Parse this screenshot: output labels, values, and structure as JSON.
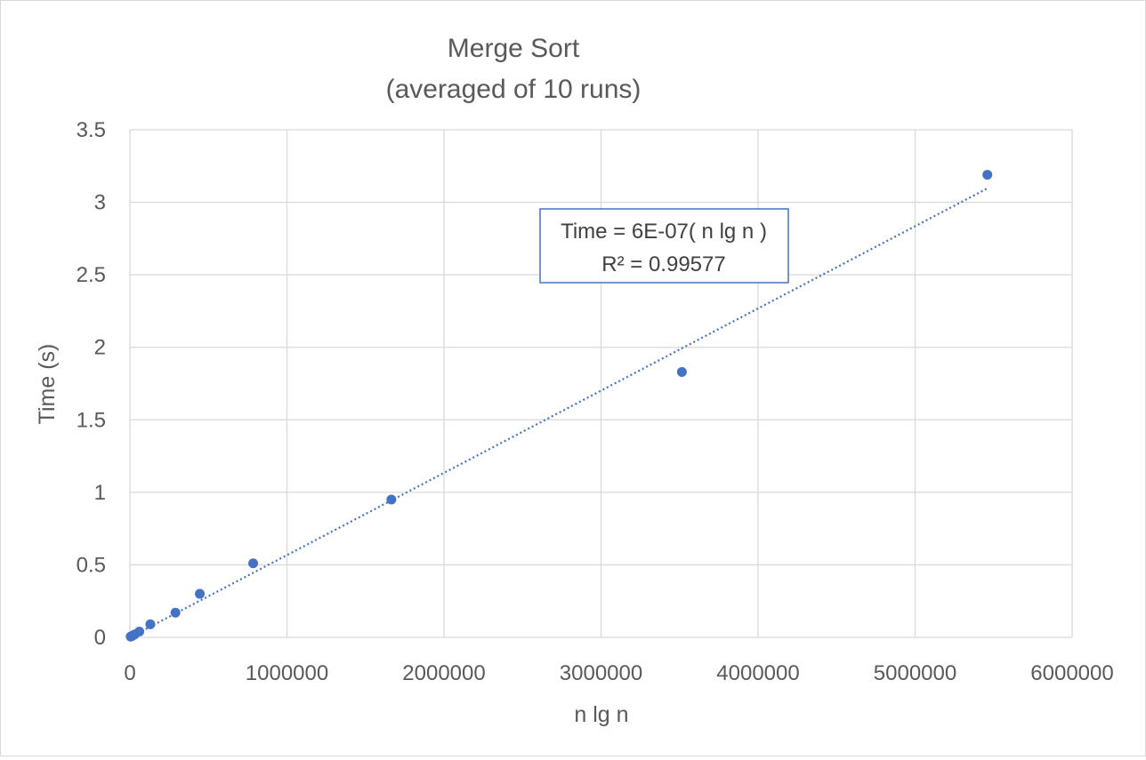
{
  "chart_data": {
    "type": "scatter",
    "title": "Merge Sort",
    "subtitle": "(averaged of 10 runs)",
    "xlabel": "n lg n",
    "ylabel": "Time (s)",
    "xlim": [
      0,
      6000000
    ],
    "ylim": [
      0,
      3.5
    ],
    "xticks": [
      0,
      1000000,
      2000000,
      3000000,
      4000000,
      5000000,
      6000000
    ],
    "yticks": [
      0,
      0.5,
      1,
      1.5,
      2,
      2.5,
      3,
      3.5
    ],
    "xtick_labels": [
      "0",
      "1000000",
      "2000000",
      "3000000",
      "4000000",
      "5000000",
      "6000000"
    ],
    "ytick_labels": [
      "0",
      "0.5",
      "1",
      "1.5",
      "2",
      "2.5",
      "3",
      "3.5"
    ],
    "grid": true,
    "series": [
      {
        "color": "#4472c4",
        "points": [
          {
            "x": 5000,
            "y": 0.005
          },
          {
            "x": 15000,
            "y": 0.01
          },
          {
            "x": 30000,
            "y": 0.02
          },
          {
            "x": 60000,
            "y": 0.04
          },
          {
            "x": 130000,
            "y": 0.09
          },
          {
            "x": 290000,
            "y": 0.17
          },
          {
            "x": 445000,
            "y": 0.3
          },
          {
            "x": 785000,
            "y": 0.51
          },
          {
            "x": 1665000,
            "y": 0.95
          },
          {
            "x": 3515000,
            "y": 1.83
          },
          {
            "x": 5460000,
            "y": 3.19
          }
        ]
      }
    ],
    "trendline": {
      "type": "linear",
      "style": "dotted",
      "color": "#4472c4",
      "x_range": [
        0,
        5460000
      ],
      "slope": 5.67e-07,
      "equation": "Time = 6E-07( n lg n )",
      "r_squared": "R² = 0.99577"
    }
  }
}
